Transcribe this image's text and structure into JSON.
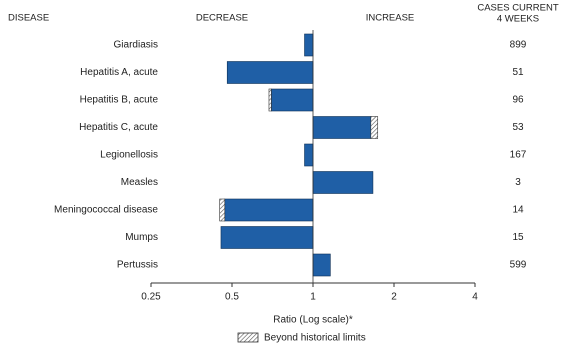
{
  "chart_data": {
    "type": "bar",
    "orientation": "horizontal",
    "log_scale": true,
    "headers": {
      "disease": "DISEASE",
      "decrease": "DECREASE",
      "increase": "INCREASE",
      "cases": [
        "CASES CURRENT",
        "4 WEEKS"
      ]
    },
    "categories": [
      "Giardiasis",
      "Hepatitis A, acute",
      "Hepatitis B, acute",
      "Hepatitis C, acute",
      "Legionellosis",
      "Measles",
      "Meningococcal disease",
      "Mumps",
      "Pertussis"
    ],
    "values": [
      0.93,
      0.48,
      0.686,
      1.74,
      0.93,
      1.67,
      0.45,
      0.455,
      1.16
    ],
    "limits": [
      null,
      null,
      0.7,
      1.64,
      null,
      null,
      0.47,
      null,
      null
    ],
    "cases": [
      899,
      51,
      96,
      53,
      167,
      3,
      14,
      15,
      599
    ],
    "color": "#1f5fa6",
    "xlim": [
      0.25,
      4
    ],
    "xticks": [
      0.25,
      0.5,
      1,
      2,
      4
    ],
    "xlabel": "Ratio (Log scale)*",
    "legend": "Beyond historical limits"
  }
}
